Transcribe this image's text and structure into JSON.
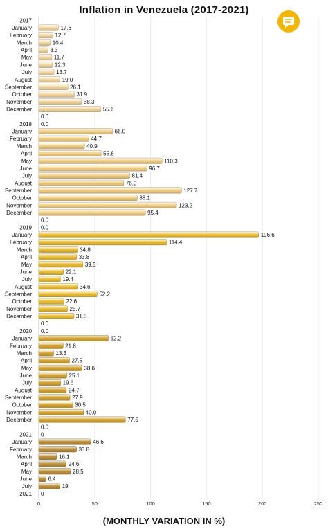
{
  "chart_data": {
    "type": "bar",
    "orientation": "horizontal",
    "title": "Inflation in Venezuela (2017-2021)",
    "xlabel": "(MONTHLY VARIATION IN %)",
    "xlim": [
      0,
      250
    ],
    "xticks": [
      0,
      50,
      100,
      150,
      200,
      250
    ],
    "grid": true,
    "colors": {
      "2017": "#f6dca6",
      "2018": "#f4d289",
      "2019": "#eec23c",
      "2020": "#d8a93a",
      "2021": "#bf9440"
    },
    "rows": [
      {
        "label": "2017",
        "value": null,
        "year": "2017"
      },
      {
        "label": "January",
        "value": 17.6,
        "year": "2017"
      },
      {
        "label": "February",
        "value": 12.7,
        "year": "2017"
      },
      {
        "label": "March",
        "value": 10.4,
        "year": "2017"
      },
      {
        "label": "April",
        "value": 8.3,
        "year": "2017"
      },
      {
        "label": "May",
        "value": 11.7,
        "year": "2017"
      },
      {
        "label": "June",
        "value": 12.3,
        "year": "2017"
      },
      {
        "label": "July",
        "value": 13.7,
        "year": "2017"
      },
      {
        "label": "August",
        "value": 19.0,
        "year": "2017"
      },
      {
        "label": "September",
        "value": 26.1,
        "year": "2017"
      },
      {
        "label": "October",
        "value": 31.9,
        "year": "2017"
      },
      {
        "label": "November",
        "value": 38.3,
        "year": "2017"
      },
      {
        "label": "December",
        "value": 55.6,
        "year": "2017"
      },
      {
        "label": "",
        "value": 0.0,
        "year": "2017"
      },
      {
        "label": "2018",
        "value": 0.0,
        "year": "2018"
      },
      {
        "label": "January",
        "value": 66.0,
        "year": "2018"
      },
      {
        "label": "February",
        "value": 44.7,
        "year": "2018"
      },
      {
        "label": "March",
        "value": 40.9,
        "year": "2018"
      },
      {
        "label": "April",
        "value": 55.8,
        "year": "2018"
      },
      {
        "label": "May",
        "value": 110.3,
        "year": "2018"
      },
      {
        "label": "June",
        "value": 96.7,
        "year": "2018"
      },
      {
        "label": "July",
        "value": 81.4,
        "year": "2018"
      },
      {
        "label": "August",
        "value": 76.0,
        "year": "2018"
      },
      {
        "label": "September",
        "value": 127.7,
        "year": "2018"
      },
      {
        "label": "October",
        "value": 88.1,
        "year": "2018"
      },
      {
        "label": "November",
        "value": 123.2,
        "year": "2018"
      },
      {
        "label": "December",
        "value": 95.4,
        "year": "2018"
      },
      {
        "label": "",
        "value": 0.0,
        "year": "2018"
      },
      {
        "label": "2019",
        "value": 0.0,
        "year": "2019"
      },
      {
        "label": "January",
        "value": 196.6,
        "year": "2019"
      },
      {
        "label": "February",
        "value": 114.4,
        "year": "2019"
      },
      {
        "label": "March",
        "value": 34.8,
        "year": "2019"
      },
      {
        "label": "April",
        "value": 33.8,
        "year": "2019"
      },
      {
        "label": "May",
        "value": 39.5,
        "year": "2019"
      },
      {
        "label": "June",
        "value": 22.1,
        "year": "2019"
      },
      {
        "label": "July",
        "value": 19.4,
        "year": "2019"
      },
      {
        "label": "August",
        "value": 34.6,
        "year": "2019"
      },
      {
        "label": "September",
        "value": 52.2,
        "year": "2019"
      },
      {
        "label": "October",
        "value": 22.6,
        "year": "2019"
      },
      {
        "label": "November",
        "value": 25.7,
        "year": "2019"
      },
      {
        "label": "December",
        "value": 31.5,
        "year": "2019"
      },
      {
        "label": "",
        "value": 0.0,
        "year": "2019"
      },
      {
        "label": "2020",
        "value": 0.0,
        "year": "2020"
      },
      {
        "label": "January",
        "value": 62.2,
        "year": "2020"
      },
      {
        "label": "February",
        "value": 21.8,
        "year": "2020"
      },
      {
        "label": "March",
        "value": 13.3,
        "year": "2020"
      },
      {
        "label": "April",
        "value": 27.5,
        "year": "2020"
      },
      {
        "label": "May",
        "value": 38.6,
        "year": "2020"
      },
      {
        "label": "June",
        "value": 25.1,
        "year": "2020"
      },
      {
        "label": "July",
        "value": 19.6,
        "year": "2020"
      },
      {
        "label": "August",
        "value": 24.7,
        "year": "2020"
      },
      {
        "label": "September",
        "value": 27.9,
        "year": "2020"
      },
      {
        "label": "October",
        "value": 30.5,
        "year": "2020"
      },
      {
        "label": "November",
        "value": 40.0,
        "year": "2020"
      },
      {
        "label": "December",
        "value": 77.5,
        "year": "2020"
      },
      {
        "label": "",
        "value": 0.0,
        "year": "2020"
      },
      {
        "label": "2021",
        "value": 0.0,
        "year": "2021"
      },
      {
        "label": "January",
        "value": 46.6,
        "year": "2021"
      },
      {
        "label": "February",
        "value": 33.8,
        "year": "2021"
      },
      {
        "label": "March",
        "value": 16.1,
        "year": "2021"
      },
      {
        "label": "April",
        "value": 24.6,
        "year": "2021"
      },
      {
        "label": "May",
        "value": 28.5,
        "year": "2021"
      },
      {
        "label": "June",
        "value": 6.4,
        "year": "2021"
      },
      {
        "label": "July",
        "value": 19,
        "year": "2021"
      },
      {
        "label": "2021",
        "value": 0,
        "year": "2021"
      }
    ]
  }
}
